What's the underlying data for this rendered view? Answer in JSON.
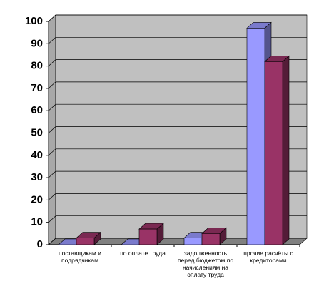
{
  "chart_data": {
    "type": "bar3d",
    "categories": [
      "поставщикам и подрядчикам",
      "по оплате труда",
      "задолженность перед бюджетом по начислениям на оплату труда",
      "прочие расчёты с кредиторами"
    ],
    "series": [
      {
        "color": "#9999ff",
        "values": [
          0,
          0,
          3,
          97
        ]
      },
      {
        "color": "#993366",
        "values": [
          3,
          7,
          5,
          82
        ]
      }
    ],
    "ylim": [
      0,
      100
    ],
    "yticks": [
      0,
      10,
      20,
      30,
      40,
      50,
      60,
      70,
      80,
      90,
      100
    ],
    "grid": true
  }
}
